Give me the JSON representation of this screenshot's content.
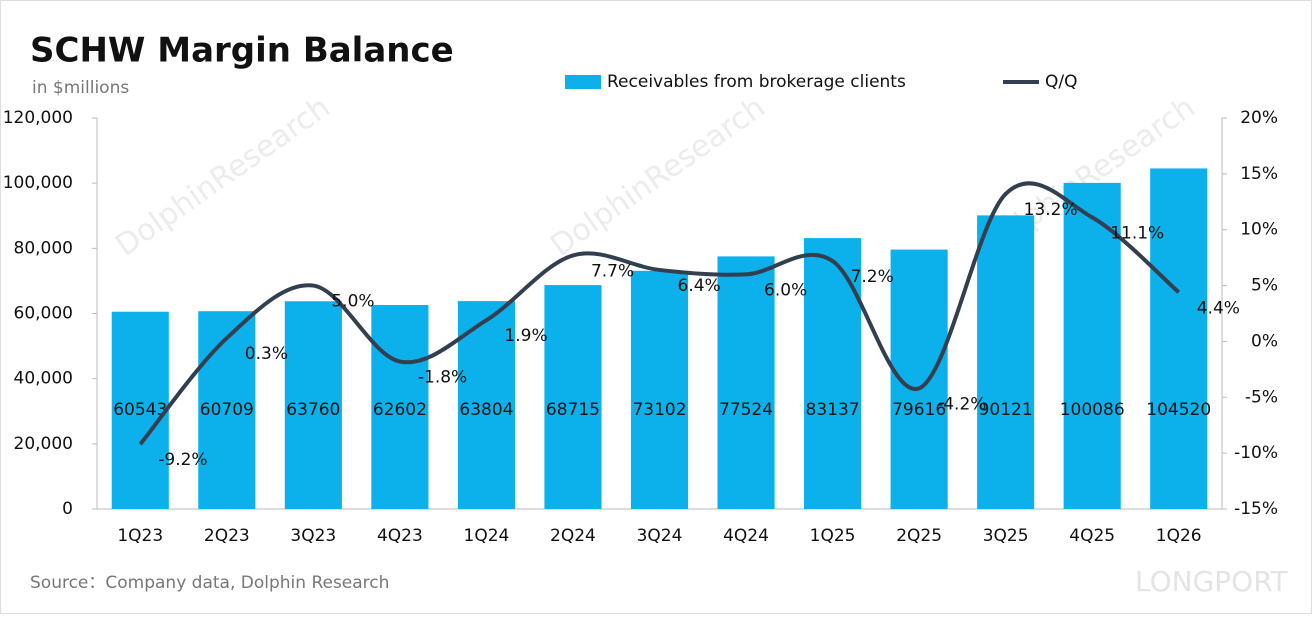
{
  "chart_data": {
    "type": "bar",
    "title": "SCHW Margin Balance",
    "subtitle": "in $millions",
    "source": "Source：Company data, Dolphin Research",
    "watermark": "DolphinResearch",
    "logo": "LONGPORT",
    "categories": [
      "1Q23",
      "2Q23",
      "3Q23",
      "4Q23",
      "1Q24",
      "2Q24",
      "3Q24",
      "4Q24",
      "1Q25",
      "2Q25",
      "3Q25",
      "4Q25",
      "1Q26"
    ],
    "series": [
      {
        "name": "Receivables from brokerage clients",
        "type": "bar",
        "color": "#0cb0ea",
        "values": [
          60543,
          60709,
          63760,
          62602,
          63804,
          68715,
          73102,
          77524,
          83137,
          79616,
          90121,
          100086,
          104520
        ]
      },
      {
        "name": "Q/Q",
        "type": "line",
        "axis": "y2",
        "color": "#333f50",
        "values": [
          -9.2,
          0.3,
          5.0,
          -1.8,
          1.9,
          7.7,
          6.4,
          6.0,
          7.2,
          -4.2,
          13.2,
          11.1,
          4.4
        ],
        "value_labels": [
          "-9.2%",
          "0.3%",
          "5.0%",
          "-1.8%",
          "1.9%",
          "7.7%",
          "6.4%",
          "6.0%",
          "7.2%",
          "-4.2%",
          "13.2%",
          "11.1%",
          "4.4%"
        ]
      }
    ],
    "ylim": [
      0,
      120000
    ],
    "yticks": [
      0,
      {
        "value": 20000,
        "label": "20,000"
      },
      {
        "value": 40000,
        "label": "40,000"
      },
      {
        "value": 60000,
        "label": "60,000"
      },
      {
        "value": 80000,
        "label": "80,000"
      },
      {
        "value": 100000,
        "label": "100,000"
      },
      {
        "value": 120000,
        "label": "120,000"
      }
    ],
    "y2lim": [
      -15,
      20
    ],
    "y2ticks": [
      {
        "value": -15,
        "label": "-15%"
      },
      {
        "value": -10,
        "label": "-10%"
      },
      {
        "value": -5,
        "label": "-5%"
      },
      {
        "value": 0,
        "label": "0%"
      },
      {
        "value": 5,
        "label": "5%"
      },
      {
        "value": 10,
        "label": "10%"
      },
      {
        "value": 15,
        "label": "15%"
      },
      {
        "value": 20,
        "label": "20%"
      }
    ],
    "legend": "top"
  }
}
